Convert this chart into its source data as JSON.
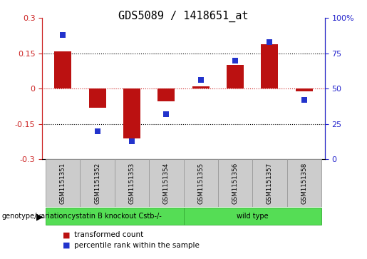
{
  "title": "GDS5089 / 1418651_at",
  "samples": [
    "GSM1151351",
    "GSM1151352",
    "GSM1151353",
    "GSM1151354",
    "GSM1151355",
    "GSM1151356",
    "GSM1151357",
    "GSM1151358"
  ],
  "transformed_count": [
    0.16,
    -0.08,
    -0.21,
    -0.055,
    0.01,
    0.1,
    0.19,
    -0.01
  ],
  "percentile_rank": [
    88,
    20,
    13,
    32,
    56,
    70,
    83,
    42
  ],
  "ylim_left": [
    -0.3,
    0.3
  ],
  "ylim_right": [
    0,
    100
  ],
  "yticks_left": [
    -0.3,
    -0.15,
    0.0,
    0.15,
    0.3
  ],
  "ytick_labels_left": [
    "-0.3",
    "-0.15",
    "0",
    "0.15",
    "0.3"
  ],
  "yticks_right": [
    0,
    25,
    50,
    75,
    100
  ],
  "ytick_labels_right": [
    "0",
    "25",
    "50",
    "75",
    "100%"
  ],
  "bar_color": "#bb1111",
  "dot_color": "#2233cc",
  "bar_width": 0.5,
  "dot_size": 35,
  "group1_label": "cystatin B knockout Cstb-/-",
  "group2_label": "wild type",
  "group_row_label": "genotype/variation",
  "group1_count": 4,
  "group2_count": 4,
  "group_color": "#55dd55",
  "sample_box_color": "#cccccc",
  "legend_bar_label": "transformed count",
  "legend_dot_label": "percentile rank within the sample",
  "title_fontsize": 11,
  "tick_fontsize": 8,
  "red_tick_color": "#cc2222",
  "blue_tick_color": "#2222cc"
}
